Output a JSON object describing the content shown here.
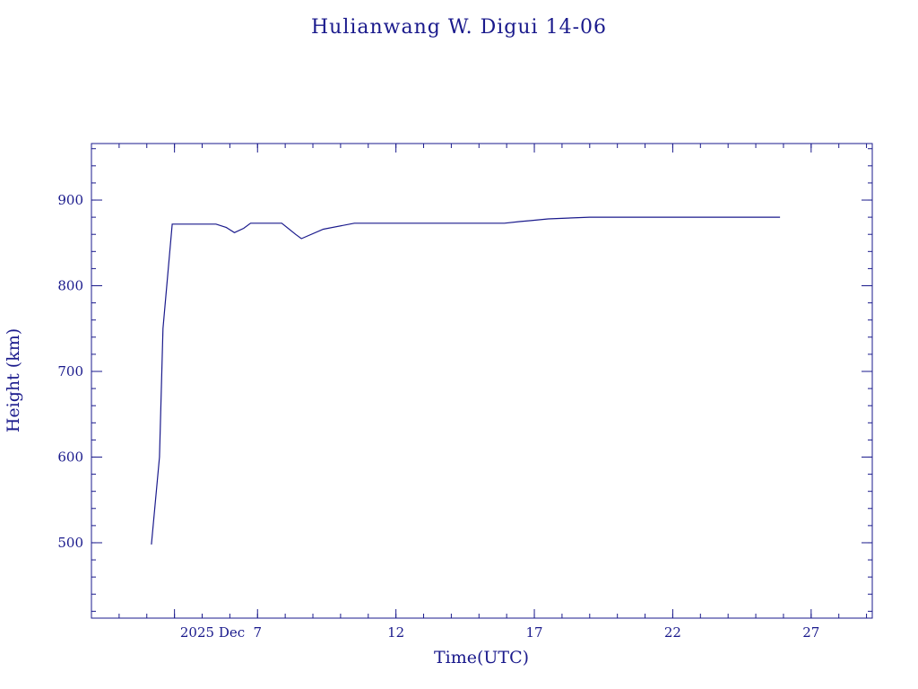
{
  "chart_data": {
    "type": "line",
    "title": "Hulianwang W. Digui 14-06",
    "xlabel": "Time(UTC)",
    "ylabel": "Height (km)",
    "color": "#1a1a8c",
    "grid": false,
    "legend": "none",
    "xlim": [
      "2025-12-01T00:00",
      "2025-12-29T05:00"
    ],
    "ylim": [
      412,
      966
    ],
    "x_ticks": [
      {
        "value": "2025-12-07T00:00",
        "label": "7"
      },
      {
        "value": "2025-12-12T00:00",
        "label": "12"
      },
      {
        "value": "2025-12-17T00:00",
        "label": "17"
      },
      {
        "value": "2025-12-22T00:00",
        "label": "22"
      },
      {
        "value": "2025-12-27T00:00",
        "label": "27"
      }
    ],
    "x_start_label": "2025 Dec",
    "x_minor_step_days": 1,
    "y_ticks": [
      500,
      600,
      700,
      800,
      900
    ],
    "y_minor_step": 20,
    "series": [
      {
        "x": [
          "2025-12-03T04:00",
          "2025-12-03T11:00",
          "2025-12-03T14:00",
          "2025-12-03T22:00",
          "2025-12-04T13:00",
          "2025-12-05T12:00",
          "2025-12-05T21:00",
          "2025-12-06T04:00",
          "2025-12-06T12:00",
          "2025-12-06T18:00",
          "2025-12-07T08:00",
          "2025-12-07T13:00",
          "2025-12-07T21:00",
          "2025-12-08T09:00",
          "2025-12-08T14:00",
          "2025-12-09T09:00",
          "2025-12-10T12:00",
          "2025-12-12T00:00",
          "2025-12-14T00:00",
          "2025-12-15T22:00",
          "2025-12-16T12:00",
          "2025-12-16T21:00",
          "2025-12-17T12:00",
          "2025-12-19T00:00",
          "2025-12-22T00:00",
          "2025-12-25T21:00"
        ],
        "y": [
          498,
          600,
          750,
          872,
          872,
          872,
          868,
          862,
          867,
          873,
          873,
          873,
          873,
          860,
          855,
          866,
          873,
          873,
          873,
          873,
          875,
          876,
          878,
          880,
          880,
          880
        ]
      }
    ]
  }
}
